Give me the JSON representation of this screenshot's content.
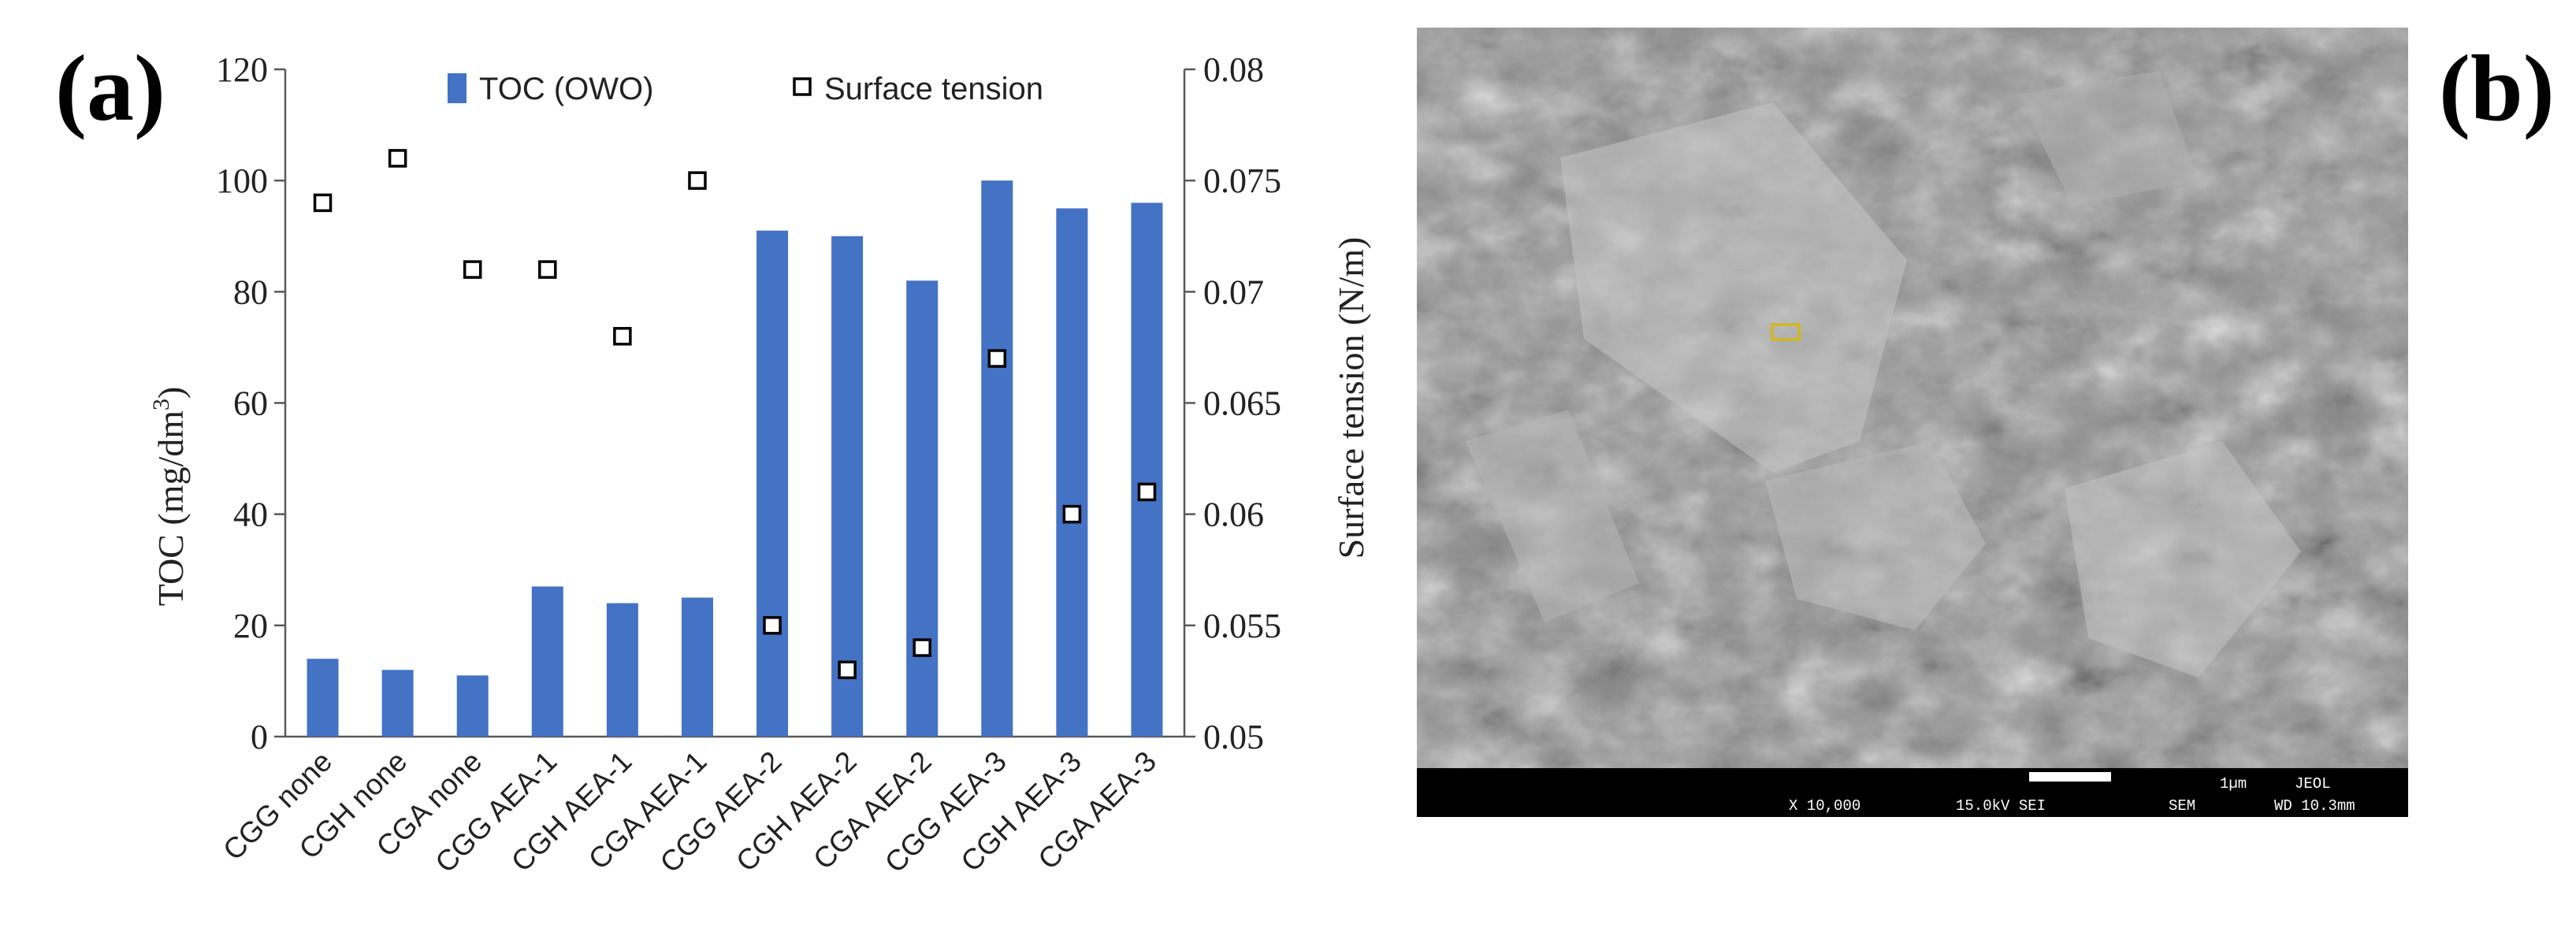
{
  "panels": {
    "a": "(a)",
    "b": "(b)"
  },
  "chart_data": {
    "type": "bar",
    "categories": [
      "CGG none",
      "CGH none",
      "CGA none",
      "CGG AEA-1",
      "CGH AEA-1",
      "CGA AEA-1",
      "CGG AEA-2",
      "CGH AEA-2",
      "CGA AEA-2",
      "CGG AEA-3",
      "CGH AEA-3",
      "CGA AEA-3"
    ],
    "series": [
      {
        "name": "TOC (OWO)",
        "kind": "bar",
        "axis": "left",
        "color": "#4472C4",
        "values": [
          14,
          12,
          11,
          27,
          24,
          25,
          91,
          90,
          82,
          100,
          95,
          96
        ]
      },
      {
        "name": "Surface tension",
        "kind": "marker",
        "axis": "right",
        "marker": "open-square",
        "values": [
          0.074,
          0.076,
          0.071,
          0.071,
          0.068,
          0.075,
          0.055,
          0.053,
          0.054,
          0.067,
          0.06,
          0.061
        ]
      }
    ],
    "ylabel": "TOC (mg/dm",
    "ylabel_sup": "3",
    "ylabel_end": ")",
    "y2label": "Surface tension (N/m)",
    "ylim": [
      0,
      120
    ],
    "yticks": [
      "0",
      "20",
      "40",
      "60",
      "80",
      "100",
      "120"
    ],
    "y2lim": [
      0.05,
      0.08
    ],
    "y2ticks": [
      "0.05",
      "0.055",
      "0.06",
      "0.065",
      "0.07",
      "0.075",
      "0.08"
    ],
    "grid": false,
    "legend_position": "top"
  },
  "sem_image": {
    "magnification": "X 10,000",
    "voltage": "15.0kV SEI",
    "mode": "SEM",
    "wd": "WD 10.3mm",
    "scale": "1µm",
    "brand": "JEOL"
  }
}
